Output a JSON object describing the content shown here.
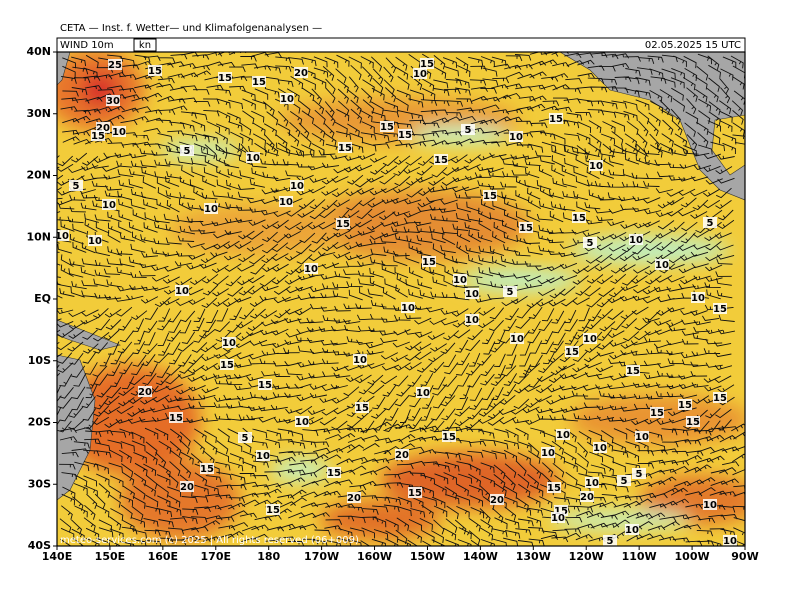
{
  "header": {
    "title": "CETA — Inst. f. Wetter— und Klimafolgenanalysen —",
    "product": "WIND 10m",
    "unit": "kn",
    "valid": "02.05.2025 15 UTC"
  },
  "map": {
    "lat_ticks": [
      "40N",
      "30N",
      "20N",
      "10N",
      "EQ",
      "10S",
      "20S",
      "30S",
      "40S"
    ],
    "lon_ticks": [
      "140E",
      "150E",
      "160E",
      "170E",
      "180",
      "170W",
      "160W",
      "150W",
      "140W",
      "130W",
      "120W",
      "110W",
      "100W",
      "90W"
    ],
    "contour_labels": [
      "25",
      "15",
      "15",
      "15",
      "20",
      "15",
      "10",
      "30",
      "10",
      "20",
      "15",
      "10",
      "15",
      "15",
      "5",
      "10",
      "15",
      "5",
      "15",
      "10",
      "15",
      "10",
      "5",
      "10",
      "15",
      "10",
      "10",
      "10",
      "15",
      "15",
      "15",
      "5",
      "10",
      "10",
      "5",
      "10",
      "15",
      "10",
      "10",
      "10",
      "10",
      "10",
      "5",
      "10",
      "15",
      "10",
      "10",
      "10",
      "10",
      "15",
      "10",
      "10",
      "15",
      "15",
      "15",
      "20",
      "10",
      "15",
      "15",
      "10",
      "15",
      "15",
      "15",
      "15",
      "5",
      "15",
      "10",
      "10",
      "10",
      "10",
      "20",
      "10",
      "15",
      "15",
      "5",
      "20",
      "15",
      "15",
      "10",
      "5",
      "20",
      "20",
      "20",
      "15",
      "15",
      "10",
      "10",
      "10",
      "5",
      "10"
    ]
  },
  "footer": {
    "copyright": "meteo-services.com (c) 2025 | All rights reserved (06+009)"
  }
}
